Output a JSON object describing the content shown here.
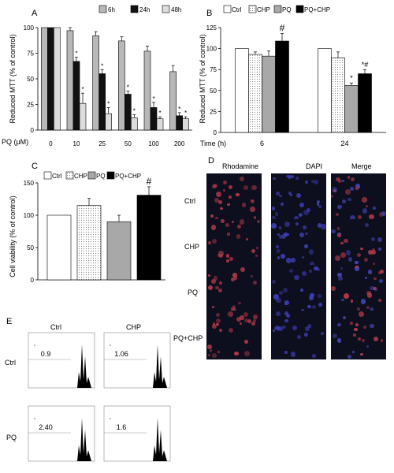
{
  "panelA": {
    "letter": "A",
    "ylabel": "Reduced MTT (% of control)",
    "xlabel_prefix": "PQ (μM)",
    "legend": [
      "6h",
      "24h",
      "48h"
    ],
    "yticks": [
      "0",
      "25",
      "50",
      "75",
      "100"
    ],
    "chart_data": {
      "type": "bar",
      "categories": [
        "0",
        "10",
        "25",
        "50",
        "100",
        "200"
      ],
      "series": [
        {
          "name": "6h",
          "values": [
            100,
            97,
            92,
            87,
            77,
            57
          ],
          "errors": [
            0,
            3,
            4,
            4,
            5,
            6
          ],
          "color": "#b8b8b8"
        },
        {
          "name": "24h",
          "values": [
            100,
            67,
            55,
            35,
            22,
            14
          ],
          "errors": [
            0,
            4,
            4,
            3,
            5,
            3
          ],
          "color": "#111111"
        },
        {
          "name": "48h",
          "values": [
            100,
            26,
            16,
            12,
            11,
            11
          ],
          "errors": [
            0,
            10,
            6,
            3,
            2,
            2
          ],
          "color": "#dcdcdc"
        }
      ],
      "ylim": [
        0,
        100
      ],
      "star_markers": [
        [
          false,
          true,
          true
        ],
        [
          false,
          true,
          true
        ],
        [
          false,
          true,
          true
        ],
        [
          false,
          true,
          true
        ],
        [
          false,
          true,
          true
        ],
        [
          false,
          true,
          true
        ]
      ],
      "star": "*"
    }
  },
  "panelB": {
    "letter": "B",
    "ylabel": "Reduced MTT (% of control)",
    "xlabel": "Time  (h)",
    "legend": [
      "Ctrl",
      "CHP",
      "PQ",
      "PQ+CHP"
    ],
    "yticks": [
      "0",
      "25",
      "50",
      "75",
      "100",
      "125"
    ],
    "chart_data": {
      "type": "bar",
      "categories": [
        "6",
        "24"
      ],
      "series": [
        {
          "name": "Ctrl",
          "values": [
            100,
            100
          ],
          "errors": [
            0,
            0
          ],
          "color": "#ffffff"
        },
        {
          "name": "CHP",
          "values": [
            93,
            89
          ],
          "errors": [
            3,
            7
          ],
          "color": "#eeeeee"
        },
        {
          "name": "PQ",
          "values": [
            91,
            56
          ],
          "errors": [
            6,
            3
          ],
          "color": "#a8a8a8"
        },
        {
          "name": "PQ+CHP",
          "values": [
            109,
            70
          ],
          "errors": [
            9,
            5
          ],
          "color": "#000000"
        }
      ],
      "ylim": [
        0,
        125
      ],
      "annotations": [
        {
          "group": 0,
          "series": 3,
          "text": "#"
        },
        {
          "group": 1,
          "series": 2,
          "text": "*"
        },
        {
          "group": 1,
          "series": 3,
          "text": "*#"
        }
      ]
    }
  },
  "panelC": {
    "letter": "C",
    "ylabel": "Cell viability (% of control)",
    "legend": [
      "Ctrl",
      "CHP",
      "PQ",
      "PQ+CHP"
    ],
    "yticks": [
      "0",
      "50",
      "100",
      "150"
    ],
    "chart_data": {
      "type": "bar",
      "categories": [
        "Ctrl",
        "CHP",
        "PQ",
        "PQ+CHP"
      ],
      "values": [
        100,
        115,
        90,
        131
      ],
      "errors": [
        0,
        11,
        10,
        13
      ],
      "colors": [
        "#ffffff",
        "#eeeeee",
        "#a8a8a8",
        "#000000"
      ],
      "ylim": [
        0,
        150
      ],
      "annotations": [
        {
          "index": 3,
          "text": "#"
        }
      ]
    }
  },
  "panelD": {
    "letter": "D",
    "columns": [
      "Rhodamine",
      "DAPI",
      "Merge"
    ],
    "rows": [
      "Ctrl",
      "CHP",
      "PQ",
      "PQ+CHP"
    ]
  },
  "panelE": {
    "letter": "E",
    "col_labels": [
      "Ctrl",
      "CHP"
    ],
    "row_labels": [
      "Ctrl",
      "PQ"
    ],
    "values": [
      [
        "0.9",
        "1.06"
      ],
      [
        "2.40",
        "1.6"
      ]
    ]
  }
}
